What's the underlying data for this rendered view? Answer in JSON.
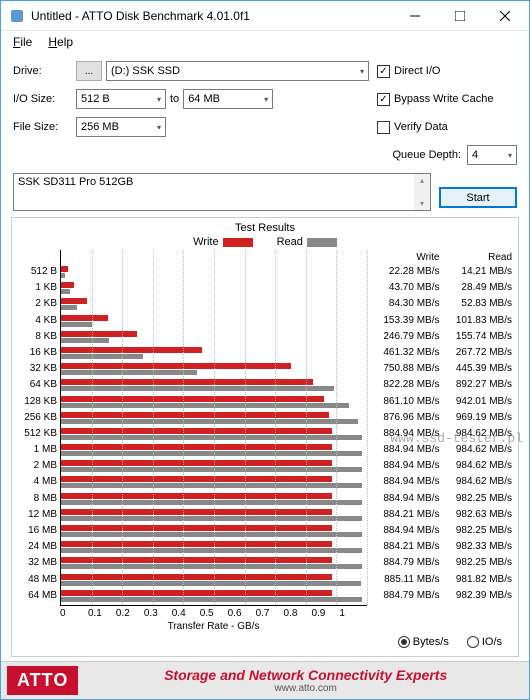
{
  "window": {
    "title": "Untitled - ATTO Disk Benchmark 4.01.0f1"
  },
  "menu": {
    "file": "File",
    "help": "Help"
  },
  "labels": {
    "drive": "Drive:",
    "io": "I/O Size:",
    "to": "to",
    "file": "File Size:",
    "qd": "Queue Depth:"
  },
  "drive": {
    "value": "(D:) SSK SSD"
  },
  "io_from": {
    "value": "512 B"
  },
  "io_to": {
    "value": "64 MB"
  },
  "file_size": {
    "value": "256 MB"
  },
  "checks": {
    "direct": "Direct I/O",
    "bypass": "Bypass Write Cache",
    "verify": "Verify Data",
    "direct_on": true,
    "bypass_on": true,
    "verify_on": false
  },
  "qd": {
    "value": "4"
  },
  "desc": {
    "text": "SSK SD311 Pro 512GB"
  },
  "buttons": {
    "start": "Start"
  },
  "chart": {
    "title": "Test Results",
    "legend_write": "Write",
    "legend_read": "Read",
    "xlabel_text": "Transfer Rate - GB/s",
    "xmax": 1.0,
    "xticks": [
      "0",
      "0.1",
      "0.2",
      "0.3",
      "0.4",
      "0.5",
      "0.6",
      "0.7",
      "0.8",
      "0.9",
      "1"
    ],
    "grid_color": "#bbbbbb",
    "write_color": "#d02020",
    "read_color": "#888888",
    "sizes": [
      "512 B",
      "1 KB",
      "2 KB",
      "4 KB",
      "8 KB",
      "16 KB",
      "32 KB",
      "64 KB",
      "128 KB",
      "256 KB",
      "512 KB",
      "1 MB",
      "2 MB",
      "4 MB",
      "8 MB",
      "12 MB",
      "16 MB",
      "24 MB",
      "32 MB",
      "48 MB",
      "64 MB"
    ],
    "write_vals": [
      22.28,
      43.7,
      84.3,
      153.39,
      246.79,
      461.32,
      750.88,
      822.28,
      861.1,
      876.96,
      884.94,
      884.94,
      884.94,
      884.94,
      884.94,
      884.21,
      884.94,
      884.21,
      884.79,
      885.11,
      884.79
    ],
    "read_vals": [
      14.21,
      28.49,
      52.83,
      101.83,
      155.74,
      267.72,
      445.39,
      892.27,
      942.01,
      969.19,
      984.62,
      984.62,
      984.62,
      984.62,
      982.25,
      982.63,
      982.25,
      982.33,
      982.25,
      981.82,
      982.39
    ],
    "write_hdr": "Write",
    "read_hdr": "Read",
    "unit": " MB/s"
  },
  "radios": {
    "bytes": "Bytes/s",
    "ios": "IO/s"
  },
  "footer": {
    "logo": "ATTO",
    "line1": "Storage and Network Connectivity Experts",
    "line2": "www.atto.com"
  },
  "watermark": "www.ssd-tester.pl"
}
